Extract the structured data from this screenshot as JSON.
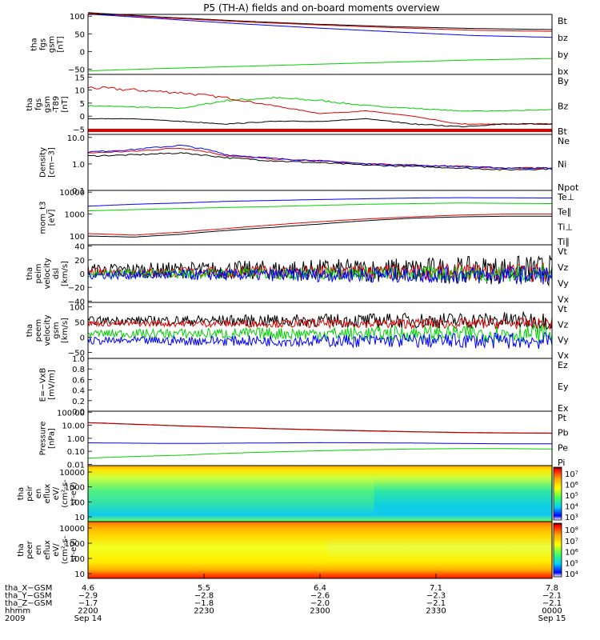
{
  "title": "P5 (TH-A) fields and on-board moments overview",
  "colors": {
    "black": "#000000",
    "red": "#e00000",
    "green": "#00d000",
    "blue": "#0000ff",
    "spec_red": "#ff2a00"
  },
  "chart_data": [
    {
      "type": "line",
      "ylabel": [
        "tha",
        "fgs",
        "gsm",
        "[nT]"
      ],
      "yticks": [
        "100",
        "50",
        "0",
        "−50"
      ],
      "ylim": [
        -65,
        105
      ],
      "series": [
        {
          "name": "Bt",
          "color": "#000000",
          "values": [
            110,
            97,
            86,
            77,
            70,
            65,
            62
          ]
        },
        {
          "name": "bz",
          "color": "#e00000",
          "values": [
            108,
            95,
            84,
            75,
            67,
            60,
            57
          ]
        },
        {
          "name": "by",
          "color": "#00d000",
          "values": [
            -55,
            -48,
            -42,
            -36,
            -30,
            -24,
            -20
          ]
        },
        {
          "name": "bx",
          "color": "#0000ff",
          "values": [
            106,
            92,
            78,
            66,
            55,
            45,
            40
          ]
        }
      ]
    },
    {
      "type": "line",
      "ylabel": [
        "tha",
        "fgs",
        "gsm",
        "-T89",
        "[nT]"
      ],
      "yticks": [
        "15",
        "10",
        "5",
        "0",
        "−5"
      ],
      "ylim": [
        -7,
        16
      ],
      "series": [
        {
          "name": "By",
          "color": "#00d000",
          "values": [
            4,
            3.5,
            3,
            6,
            7,
            6,
            4,
            3,
            2,
            2,
            2.5
          ]
        },
        {
          "name": "Bz",
          "color": "#e00000",
          "values": [
            11,
            10,
            9,
            7,
            4,
            1,
            2,
            0,
            -3,
            -3,
            -3
          ]
        },
        {
          "name": "Bt",
          "color": "#000000",
          "values": [
            -1,
            -1,
            -2,
            -3,
            -2,
            -2,
            -1,
            -3,
            -4,
            -3,
            -3
          ]
        }
      ]
    },
    {
      "type": "line",
      "log": true,
      "ylabel": [
        "Density",
        "[cm−3]"
      ],
      "yticks": [
        "10.0",
        "1.0",
        "0.1"
      ],
      "ylim": [
        0.1,
        13
      ],
      "series": [
        {
          "name": "Ne",
          "color": "#e00000",
          "values": [
            2.6,
            3.0,
            4.0,
            2.0,
            1.5,
            1.3,
            1.0,
            0.9,
            0.8,
            0.7,
            0.7
          ]
        },
        {
          "name": "Ni",
          "color": "#000000",
          "values": [
            2.0,
            2.2,
            2.6,
            1.7,
            1.3,
            1.1,
            0.9,
            0.8,
            0.7,
            0.6,
            0.65
          ]
        },
        {
          "name": "Npot",
          "color": "#0000ff",
          "values": [
            2.8,
            3.5,
            5.0,
            2.2,
            1.6,
            1.3,
            1.0,
            0.9,
            0.8,
            0.7,
            0.7
          ]
        }
      ]
    },
    {
      "type": "line",
      "log": true,
      "ylabel": [
        "mom_t3",
        "[eV]"
      ],
      "yticks": [
        "10000",
        "1000",
        "100"
      ],
      "ylim": [
        40,
        12000
      ],
      "series": [
        {
          "name": "Te⊥",
          "color": "#e00000",
          "values": [
            130,
            110,
            150,
            220,
            320,
            450,
            600,
            750,
            900,
            1000,
            1000
          ]
        },
        {
          "name": "Te∥",
          "color": "#000000",
          "values": [
            100,
            90,
            120,
            180,
            250,
            350,
            500,
            650,
            750,
            800,
            800
          ]
        },
        {
          "name": "Ti⊥",
          "color": "#0000ff",
          "values": [
            2300,
            2800,
            3200,
            3800,
            4200,
            4600,
            5000,
            5400,
            5600,
            5500,
            5400
          ]
        },
        {
          "name": "Ti∥",
          "color": "#00d000",
          "values": [
            1400,
            1600,
            1800,
            2000,
            2200,
            2500,
            2800,
            3000,
            3200,
            3100,
            3000
          ]
        }
      ]
    },
    {
      "type": "line",
      "ylabel": [
        "tha",
        "peim",
        "velocity",
        "dsl",
        "[km/s]"
      ],
      "yticks": [
        "40",
        "20",
        "0",
        "−20",
        "−40"
      ],
      "ylim": [
        -42,
        42
      ],
      "series": [
        {
          "name": "Vt",
          "color": "#000000",
          "base": 5,
          "noise": 16
        },
        {
          "name": "Vz",
          "color": "#e00000",
          "base": 2,
          "noise": 10
        },
        {
          "name": "Vy",
          "color": "#00d000",
          "base": 0,
          "noise": 9
        },
        {
          "name": "Vx",
          "color": "#0000ff",
          "base": -2,
          "noise": 10
        }
      ],
      "legend": [
        "Vt",
        "Vz",
        "Vy",
        "Vx"
      ]
    },
    {
      "type": "line",
      "ylabel": [
        "tha",
        "peem",
        "velocity",
        "gsm",
        "[km/s]"
      ],
      "yticks": [
        "100",
        "50",
        "0",
        "−50"
      ],
      "ylim": [
        -70,
        115
      ],
      "series": [
        {
          "name": "Vt",
          "color": "#000000",
          "base": 55,
          "noise": 22
        },
        {
          "name": "Vz",
          "color": "#e00000",
          "base": 45,
          "noise": 14
        },
        {
          "name": "Vy",
          "color": "#00d000",
          "base": 12,
          "noise": 22
        },
        {
          "name": "Vx",
          "color": "#0000ff",
          "base": -12,
          "noise": 20
        }
      ]
    },
    {
      "type": "line",
      "ylabel": [
        "E=−VxB",
        "[mV/m]"
      ],
      "yticks": [
        "1.0",
        "0.8",
        "0.6",
        "0.4",
        "0.2",
        "0.0"
      ],
      "ylim": [
        0,
        1
      ],
      "series": [
        {
          "name": "Ez",
          "color": "#e00000",
          "values": []
        },
        {
          "name": "Ey",
          "color": "#00d000",
          "values": []
        },
        {
          "name": "Ex",
          "color": "#0000ff",
          "values": []
        }
      ]
    },
    {
      "type": "line",
      "log": true,
      "ylabel": [
        "Pressure",
        "[nPa]"
      ],
      "yticks": [
        "100.00",
        "10.00",
        "1.00",
        "0.10",
        "0.01"
      ],
      "ylim": [
        0.008,
        120
      ],
      "series": [
        {
          "name": "Pt",
          "color": "#000000",
          "values": [
            16,
            12,
            9,
            7,
            5.5,
            4.5,
            3.8,
            3.2,
            2.8,
            2.6,
            2.5
          ]
        },
        {
          "name": "Pb",
          "color": "#e00000",
          "values": [
            15.5,
            11.5,
            8.7,
            6.8,
            5.3,
            4.3,
            3.6,
            3.1,
            2.7,
            2.5,
            2.4
          ]
        },
        {
          "name": "Pe",
          "color": "#00d000",
          "values": [
            0.03,
            0.04,
            0.05,
            0.07,
            0.09,
            0.11,
            0.13,
            0.15,
            0.16,
            0.16,
            0.15
          ]
        },
        {
          "name": "Pi",
          "color": "#0000ff",
          "values": [
            0.45,
            0.42,
            0.4,
            0.42,
            0.44,
            0.46,
            0.45,
            0.43,
            0.4,
            0.38,
            0.38
          ]
        }
      ]
    },
    {
      "type": "heatmap",
      "ylabel": [
        "tha",
        "peir",
        "en",
        "eflux",
        "eV/",
        "(cm²-s-",
        "sr-eV)"
      ],
      "yticks": [
        "10000",
        "1000",
        "100",
        "10"
      ],
      "colorbar": [
        "10⁷",
        "10⁶",
        "10⁵",
        "10⁴",
        "10³"
      ]
    },
    {
      "type": "heatmap",
      "ylabel": [
        "tha",
        "peer",
        "en",
        "eflux",
        "eV/",
        "(cm²-s-",
        "sr-eV)"
      ],
      "yticks": [
        "10000",
        "1000",
        "100",
        "10"
      ],
      "colorbar": [
        "10⁸",
        "10⁷",
        "10⁶",
        "10⁵",
        "10⁴"
      ]
    }
  ],
  "xaxis": {
    "rows": [
      {
        "label": "tha_X−GSM",
        "values": [
          "4.6",
          "5.5",
          "6.4",
          "7.1",
          "7.8"
        ]
      },
      {
        "label": "tha_Y−GSM",
        "values": [
          "−2.9",
          "−2.8",
          "−2.6",
          "−2.3",
          "−2.1"
        ]
      },
      {
        "label": "tha_Z−GSM",
        "values": [
          "−1.7",
          "−1.8",
          "−2.0",
          "−2.1",
          "−2.1"
        ]
      },
      {
        "label": "hhmm",
        "values": [
          "2200",
          "2230",
          "2300",
          "2330",
          "0000"
        ]
      },
      {
        "label": "2009",
        "values": [
          "Sep 14",
          "",
          "",
          "",
          "Sep 15"
        ]
      }
    ]
  }
}
